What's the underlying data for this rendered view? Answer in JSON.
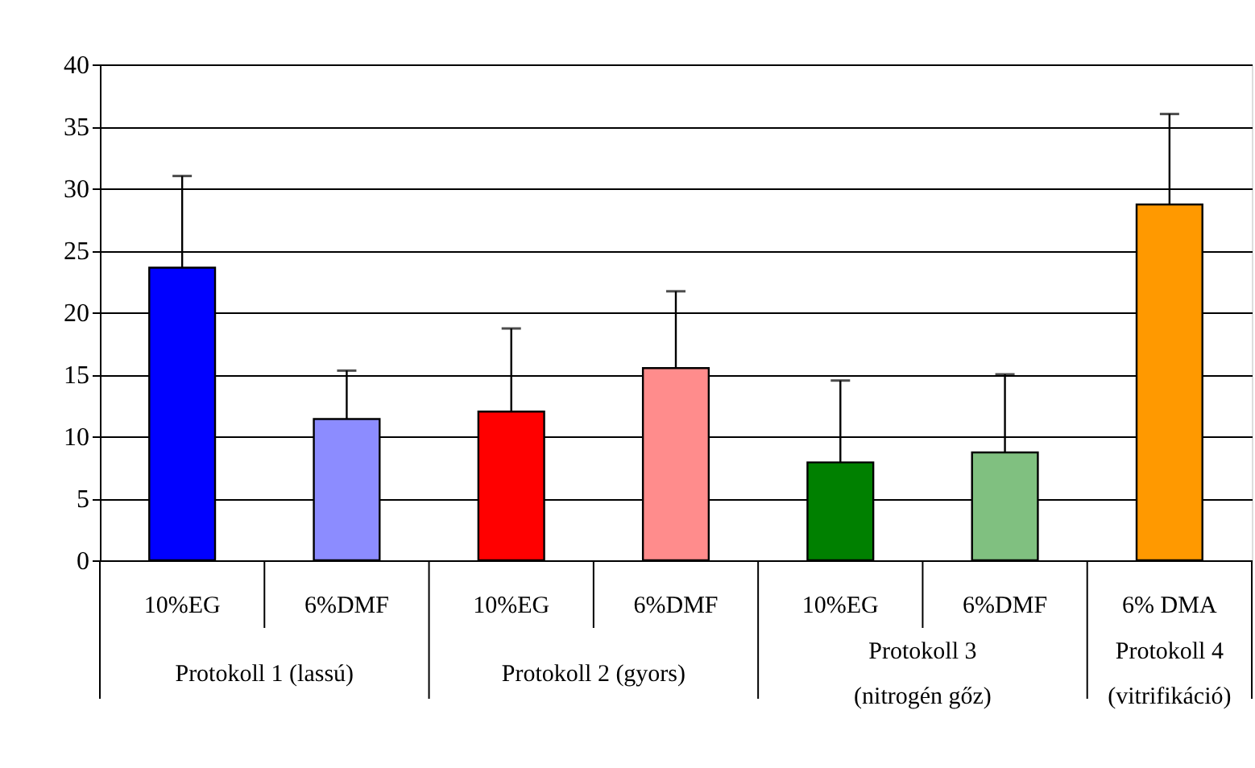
{
  "chart_data": {
    "type": "bar",
    "categories": [
      "10%EG",
      "6%DMF",
      "10%EG",
      "6%DMF",
      "10%EG",
      "6%DMF",
      "6% DMA"
    ],
    "values": [
      23.6,
      11.4,
      12.0,
      15.5,
      7.9,
      8.7,
      28.7
    ],
    "colors": [
      "#0000ff",
      "#8c8cff",
      "#ff0000",
      "#ff8c8c",
      "#008000",
      "#80c080",
      "#ff9900"
    ],
    "errors": [
      [
        23.6,
        31.0
      ],
      [
        11.4,
        15.3
      ],
      [
        12.0,
        18.7
      ],
      [
        15.5,
        21.7
      ],
      [
        7.9,
        14.5
      ],
      [
        8.7,
        15.0
      ],
      [
        28.7,
        36.0
      ]
    ],
    "annotations": [
      "Protokoll 1 (lassú)",
      "Protokoll 2 (gyors)",
      "Protokoll 3\n(nitrogén gőz)",
      "Protokoll 4\n(vitrifikáció)"
    ],
    "ylim": [
      0,
      40
    ],
    "yticks": [
      0,
      5,
      10,
      15,
      20,
      25,
      30,
      35,
      40
    ],
    "grid": "y"
  }
}
